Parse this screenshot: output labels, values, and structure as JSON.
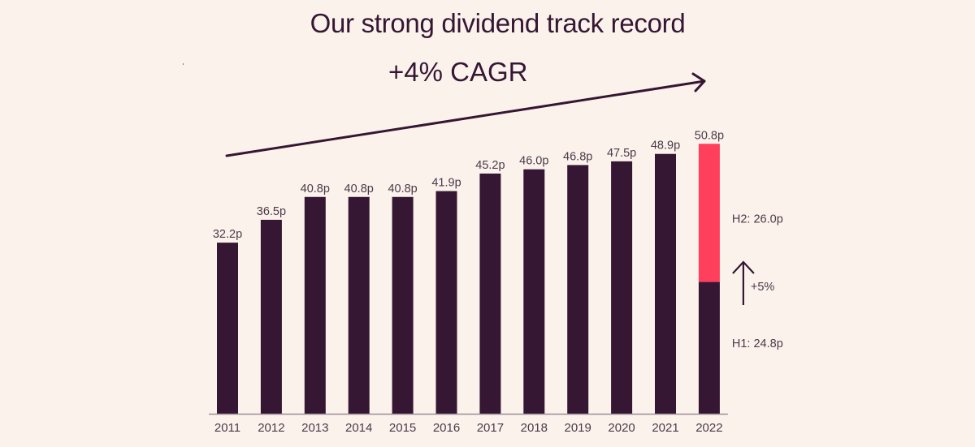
{
  "chart_data": {
    "type": "bar",
    "title": "Our strong dividend track record",
    "annotation_cagr": "+4% CAGR",
    "xlabel": "",
    "ylabel": "",
    "unit": "p",
    "ylim": [
      0,
      52
    ],
    "grid": false,
    "categories": [
      "2011",
      "2012",
      "2013",
      "2014",
      "2015",
      "2016",
      "2017",
      "2018",
      "2019",
      "2020",
      "2021",
      "2022"
    ],
    "values": [
      32.2,
      36.5,
      40.8,
      40.8,
      40.8,
      41.9,
      45.2,
      46.0,
      46.8,
      47.5,
      48.9,
      50.8
    ],
    "value_labels": [
      "32.2p",
      "36.5p",
      "40.8p",
      "40.8p",
      "40.8p",
      "41.9p",
      "45.2p",
      "46.0p",
      "46.8p",
      "47.5p",
      "48.9p",
      "50.8p"
    ],
    "split_last_bar": {
      "category": "2022",
      "series": [
        {
          "name": "H1",
          "value": 24.8,
          "label": "H1: 24.8p",
          "color": "#351733"
        },
        {
          "name": "H2",
          "value": 26.0,
          "label": "H2: 26.0p",
          "color": "#ff3f5c"
        }
      ],
      "growth_label": "+5%"
    },
    "bar_color": "#351733",
    "accent_color": "#ff3f5c",
    "trend_arrow": "up-right"
  }
}
